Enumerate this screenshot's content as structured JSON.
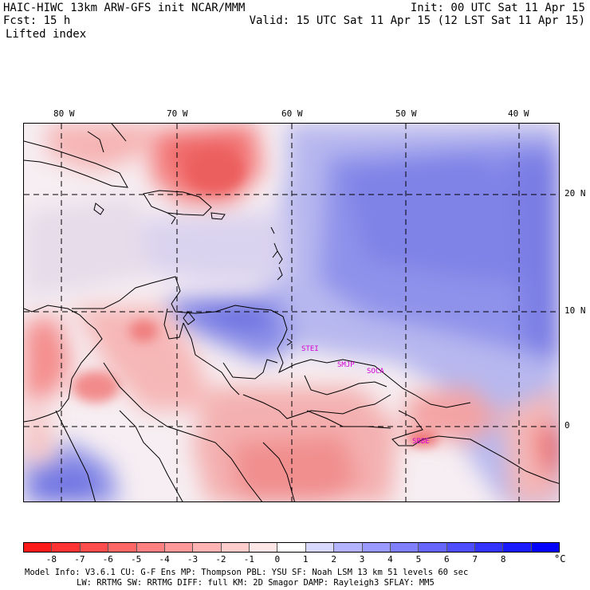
{
  "header": {
    "model_line": "HAIC-HIWC 13km ARW-GFS init   NCAR/MMM",
    "fcst_line": "Fcst:   15 h",
    "field_name": "Lifted index",
    "init_line": "Init: 00 UTC Sat 11 Apr 15",
    "valid_line": "Valid: 15 UTC Sat 11 Apr 15 (12 LST Sat 11 Apr 15)"
  },
  "map": {
    "lon_labels": [
      "80 W",
      "70 W",
      "60 W",
      "50 W",
      "40 W"
    ],
    "lat_labels": [
      "20 N",
      "10 N",
      "0"
    ],
    "stations": [
      "STEI",
      "SMJP",
      "SOCA",
      "SBBE"
    ],
    "station_color": "#d400d4"
  },
  "colorbar": {
    "labels": [
      "-8",
      "-7",
      "-6",
      "-5",
      "-4",
      "-3",
      "-2",
      "-1",
      "0",
      "1",
      "2",
      "3",
      "4",
      "5",
      "6",
      "7",
      "8"
    ],
    "unit": "°C",
    "colors": [
      "#ff1a1a",
      "#ff3333",
      "#ff4d4d",
      "#ff6666",
      "#ff8080",
      "#ff9999",
      "#ffb3b3",
      "#ffcccc",
      "#ffe6e6",
      "#ffffff",
      "#d9d9ff",
      "#b3b3ff",
      "#9999ff",
      "#8080ff",
      "#6666ff",
      "#4d4dff",
      "#3333ff",
      "#1a1aff",
      "#0000ff"
    ]
  },
  "footer": {
    "line1": "Model Info: V3.6.1     CU: G-F Ens MP: Thompson    PBL: YSU     SF: Noah LSM     13 km    51 levels   60 sec",
    "line2": "LW: RRTMG   SW: RRTMG  DIFF: full    KM: 2D Smagor DAMP: Rayleigh3  SFLAY: MM5"
  }
}
